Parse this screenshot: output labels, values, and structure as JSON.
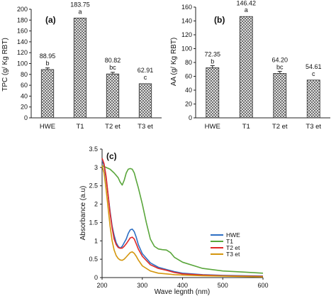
{
  "chart_data": [
    {
      "type": "bar",
      "panel_label": "(a)",
      "ylabel": "TPC (g/ Kg RBT)",
      "categories": [
        "HWE",
        "T1",
        "T2 et",
        "T3 et"
      ],
      "values": [
        88.95,
        183.75,
        80.82,
        62.91
      ],
      "value_labels": [
        "88.95",
        "183.75",
        "80.82",
        "62.91"
      ],
      "letters": [
        "b",
        "a",
        "bc",
        "c"
      ],
      "errors": [
        3,
        0,
        3,
        0
      ],
      "ylim": [
        0,
        200
      ],
      "yticks": [
        "0",
        "20",
        "40",
        "60",
        "80",
        "100",
        "120",
        "140",
        "160",
        "180",
        "200"
      ],
      "grid": false
    },
    {
      "type": "bar",
      "panel_label": "(b)",
      "ylabel": "AA (g/ Kg RBT)",
      "categories": [
        "HWE",
        "T1",
        "T2 et",
        "T3 et"
      ],
      "values": [
        72.35,
        146.42,
        64.2,
        54.61
      ],
      "value_labels": [
        "72.35",
        "146.42",
        "64.20",
        "54.61"
      ],
      "letters": [
        "b",
        "a",
        "bc",
        "c"
      ],
      "errors": [
        3,
        0,
        3,
        0
      ],
      "ylim": [
        0,
        160
      ],
      "yticks": [
        "0",
        "20",
        "40",
        "60",
        "80",
        "100",
        "120",
        "140",
        "160"
      ],
      "grid": false
    },
    {
      "type": "line",
      "panel_label": "(c)",
      "xlabel": "Wave legnth (nm)",
      "ylabel": "Absorbance (a.u)",
      "xlim": [
        200,
        600
      ],
      "ylim": [
        0,
        3.5
      ],
      "xticks": [
        "200",
        "300",
        "400",
        "500",
        "600"
      ],
      "yticks": [
        "0",
        "0.5",
        "1",
        "1.5",
        "2",
        "2.5",
        "3",
        "3.5"
      ],
      "legend_position": "right",
      "grid": false,
      "series": [
        {
          "name": "HWE",
          "color": "#2e6fc4",
          "x": [
            200,
            205,
            210,
            215,
            220,
            225,
            230,
            235,
            240,
            245,
            250,
            255,
            260,
            265,
            270,
            275,
            280,
            285,
            290,
            300,
            320,
            340,
            360,
            380,
            400,
            450,
            500,
            550,
            600
          ],
          "y": [
            3.2,
            3.05,
            2.7,
            2.25,
            1.8,
            1.4,
            1.15,
            0.95,
            0.85,
            0.8,
            0.85,
            0.95,
            1.05,
            1.2,
            1.3,
            1.32,
            1.25,
            1.1,
            0.9,
            0.65,
            0.4,
            0.28,
            0.22,
            0.16,
            0.12,
            0.08,
            0.06,
            0.05,
            0.04
          ]
        },
        {
          "name": "T1",
          "color": "#5aa63c",
          "x": [
            200,
            210,
            220,
            230,
            240,
            245,
            250,
            255,
            260,
            265,
            270,
            275,
            280,
            285,
            290,
            300,
            310,
            320,
            330,
            340,
            350,
            360,
            370,
            380,
            400,
            450,
            500,
            550,
            600
          ],
          "y": [
            3.05,
            3.0,
            2.95,
            2.85,
            2.72,
            2.6,
            2.52,
            2.65,
            2.85,
            2.95,
            2.97,
            2.95,
            2.85,
            2.65,
            2.45,
            2.0,
            1.5,
            1.05,
            0.85,
            0.78,
            0.76,
            0.75,
            0.68,
            0.55,
            0.42,
            0.25,
            0.18,
            0.15,
            0.12
          ]
        },
        {
          "name": "T2 et",
          "color": "#e02828",
          "x": [
            200,
            205,
            210,
            215,
            220,
            225,
            230,
            235,
            240,
            245,
            250,
            255,
            260,
            265,
            270,
            275,
            280,
            285,
            290,
            300,
            320,
            340,
            360,
            380,
            400,
            450,
            500,
            550,
            600
          ],
          "y": [
            3.25,
            3.1,
            2.75,
            2.25,
            1.75,
            1.35,
            1.05,
            0.9,
            0.82,
            0.8,
            0.8,
            0.85,
            0.92,
            1.0,
            1.08,
            1.1,
            1.05,
            0.92,
            0.78,
            0.58,
            0.35,
            0.25,
            0.2,
            0.14,
            0.1,
            0.07,
            0.05,
            0.04,
            0.03
          ]
        },
        {
          "name": "T3 et",
          "color": "#d4960e",
          "x": [
            200,
            205,
            210,
            215,
            220,
            225,
            230,
            235,
            240,
            245,
            250,
            255,
            260,
            265,
            270,
            275,
            280,
            285,
            290,
            300,
            320,
            340,
            360,
            380,
            400,
            450,
            500,
            550,
            600
          ],
          "y": [
            3.05,
            2.85,
            2.4,
            1.9,
            1.4,
            1.0,
            0.75,
            0.6,
            0.52,
            0.48,
            0.47,
            0.5,
            0.56,
            0.62,
            0.68,
            0.7,
            0.66,
            0.58,
            0.48,
            0.32,
            0.18,
            0.12,
            0.1,
            0.08,
            0.07,
            0.05,
            0.04,
            0.03,
            0.02
          ]
        }
      ]
    }
  ]
}
